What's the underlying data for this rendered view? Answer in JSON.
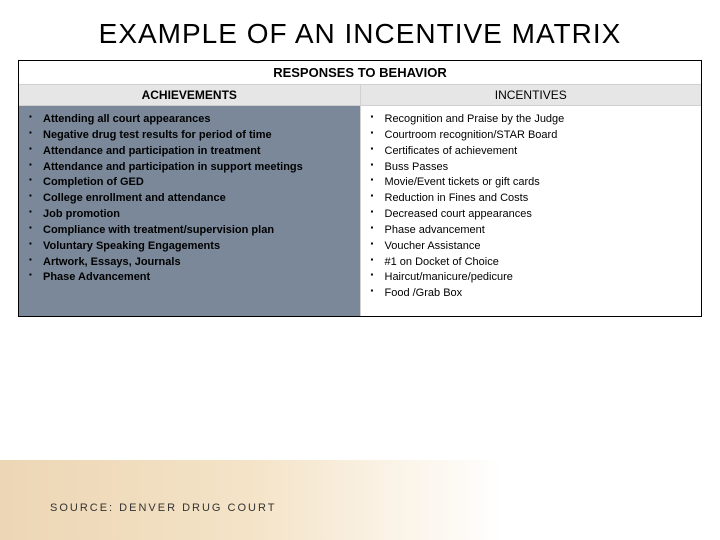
{
  "title": "EXAMPLE OF AN INCENTIVE MATRIX",
  "table": {
    "superheader": "RESPONSES TO BEHAVIOR",
    "columns": [
      "ACHIEVEMENTS",
      "INCENTIVES"
    ],
    "left_bg": "#7a8899",
    "right_bg": "#ffffff",
    "subheader_bg": "#e6e6e6",
    "achievements": [
      "Attending all court appearances",
      "Negative drug test results for period of time",
      "Attendance and participation in treatment",
      "Attendance and participation in support meetings",
      "Completion of GED",
      "College enrollment and attendance",
      "Job promotion",
      "Compliance with treatment/supervision plan",
      "Voluntary Speaking Engagements",
      "Artwork, Essays, Journals",
      "Phase Advancement"
    ],
    "incentives": [
      "Recognition and Praise by the Judge",
      "Courtroom recognition/STAR Board",
      "Certificates of achievement",
      "Buss Passes",
      "Movie/Event tickets or gift cards",
      "Reduction in Fines and Costs",
      "Decreased court appearances",
      "Phase advancement",
      "Voucher Assistance",
      "#1 on Docket of Choice",
      "Haircut/manicure/pedicure",
      "Food /Grab Box"
    ]
  },
  "source": "SOURCE: DENVER DRUG COURT",
  "styling": {
    "title_fontsize": 28,
    "body_fontsize": 11,
    "footer_gradient_start": "#c98a2a",
    "footer_gradient_mid": "#e0b060"
  }
}
